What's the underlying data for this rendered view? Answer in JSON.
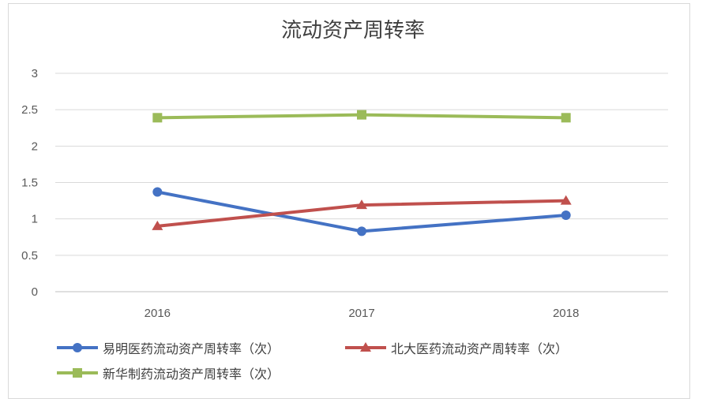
{
  "chart_data": {
    "type": "line",
    "title": "流动资产周转率",
    "categories": [
      "2016",
      "2017",
      "2018"
    ],
    "ylim": [
      0,
      3
    ],
    "yticks": [
      "0",
      "0.5",
      "1",
      "1.5",
      "2",
      "2.5",
      "3"
    ],
    "grid": true,
    "legend_position": "bottom",
    "series": [
      {
        "name": "易明医药流动资产周转率（次）",
        "values": [
          1.37,
          0.83,
          1.05
        ],
        "color": "#4472c4",
        "marker": "circle"
      },
      {
        "name": "北大医药流动资产周转率（次）",
        "values": [
          0.9,
          1.19,
          1.25
        ],
        "color": "#c0504d",
        "marker": "triangle"
      },
      {
        "name": "新华制药流动资产周转率（次）",
        "values": [
          2.39,
          2.43,
          2.39
        ],
        "color": "#9bbb59",
        "marker": "square"
      }
    ]
  }
}
